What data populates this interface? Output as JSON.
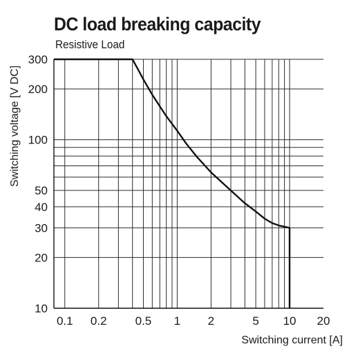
{
  "chart_data": {
    "type": "line",
    "title": "DC load breaking capacity",
    "subtitle": "Resistive Load",
    "xlabel": "Switching current [A]",
    "ylabel": "Switching voltage [V DC]",
    "x_scale": "log",
    "y_scale": "log",
    "xlim": [
      0.08,
      20
    ],
    "ylim": [
      10,
      300
    ],
    "x_ticks": [
      0.1,
      0.2,
      0.5,
      1,
      2,
      5,
      10,
      20
    ],
    "x_tick_labels": [
      "0.1",
      "0.2",
      "0.5",
      "1",
      "2",
      "5",
      "10",
      "20"
    ],
    "y_ticks": [
      10,
      20,
      30,
      40,
      50,
      100,
      200,
      300
    ],
    "y_tick_labels": [
      "10",
      "20",
      "30",
      "40",
      "50",
      "100",
      "200",
      "300"
    ],
    "x_gridlines": [
      0.1,
      0.2,
      0.3,
      0.4,
      0.5,
      0.6,
      0.7,
      0.8,
      0.9,
      1,
      2,
      3,
      4,
      5,
      6,
      7,
      8,
      9,
      10
    ],
    "y_gridlines": [
      10,
      20,
      30,
      40,
      50,
      60,
      70,
      80,
      90,
      100,
      200,
      300
    ],
    "grid": true,
    "series": [
      {
        "x": [
          0.08,
          0.4,
          0.45,
          0.5,
          0.6,
          0.7,
          0.8,
          1,
          1.2,
          1.5,
          2,
          3,
          4,
          5,
          6,
          7,
          8,
          10,
          10
        ],
        "y": [
          300,
          300,
          260,
          228,
          185,
          158,
          138,
          113,
          95,
          79,
          64,
          50,
          42,
          37.5,
          34,
          32,
          31,
          30,
          10
        ]
      }
    ]
  }
}
